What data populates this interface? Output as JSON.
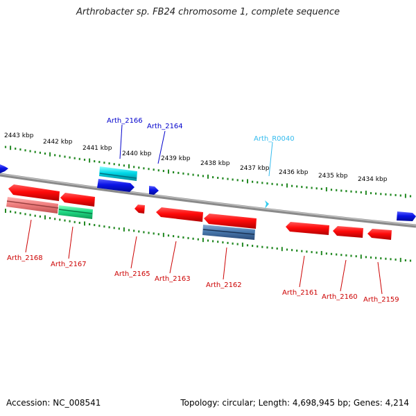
{
  "title": "Arthrobacter sp. FB24 chromosome 1, complete sequence",
  "footer": {
    "accession": "Accession: NC_008541",
    "summary": "Topology: circular; Length: 4,698,945 bp; Genes: 4,214"
  },
  "colors": {
    "cds_forward": "#0a14e6",
    "cds_reverse": "#ff0a0a",
    "rrna": "#00d8e8",
    "trna": "#33ccee",
    "pseudo_light": "#f08080",
    "green_feature": "#22dd88",
    "steel_feature": "#4a7bb0",
    "ticks": "#228822",
    "backbone": "#888888"
  },
  "kbp_labels": [
    "2443 kbp",
    "2442 kbp",
    "2441 kbp",
    "2440 kbp",
    "2439 kbp",
    "2438 kbp",
    "2437 kbp",
    "2436 kbp",
    "2435 kbp",
    "2434 kbp"
  ],
  "gene_labels": {
    "top": [
      {
        "name": "Arth_2166",
        "color": "#0000cc"
      },
      {
        "name": "Arth_2164",
        "color": "#0000cc"
      },
      {
        "name": "Arth_R0040",
        "color": "#33bbee"
      }
    ],
    "bottom": [
      {
        "name": "Arth_2168"
      },
      {
        "name": "Arth_2167"
      },
      {
        "name": "Arth_2165"
      },
      {
        "name": "Arth_2163"
      },
      {
        "name": "Arth_2162"
      },
      {
        "name": "Arth_2161"
      },
      {
        "name": "Arth_2160"
      },
      {
        "name": "Arth_2159"
      }
    ]
  }
}
